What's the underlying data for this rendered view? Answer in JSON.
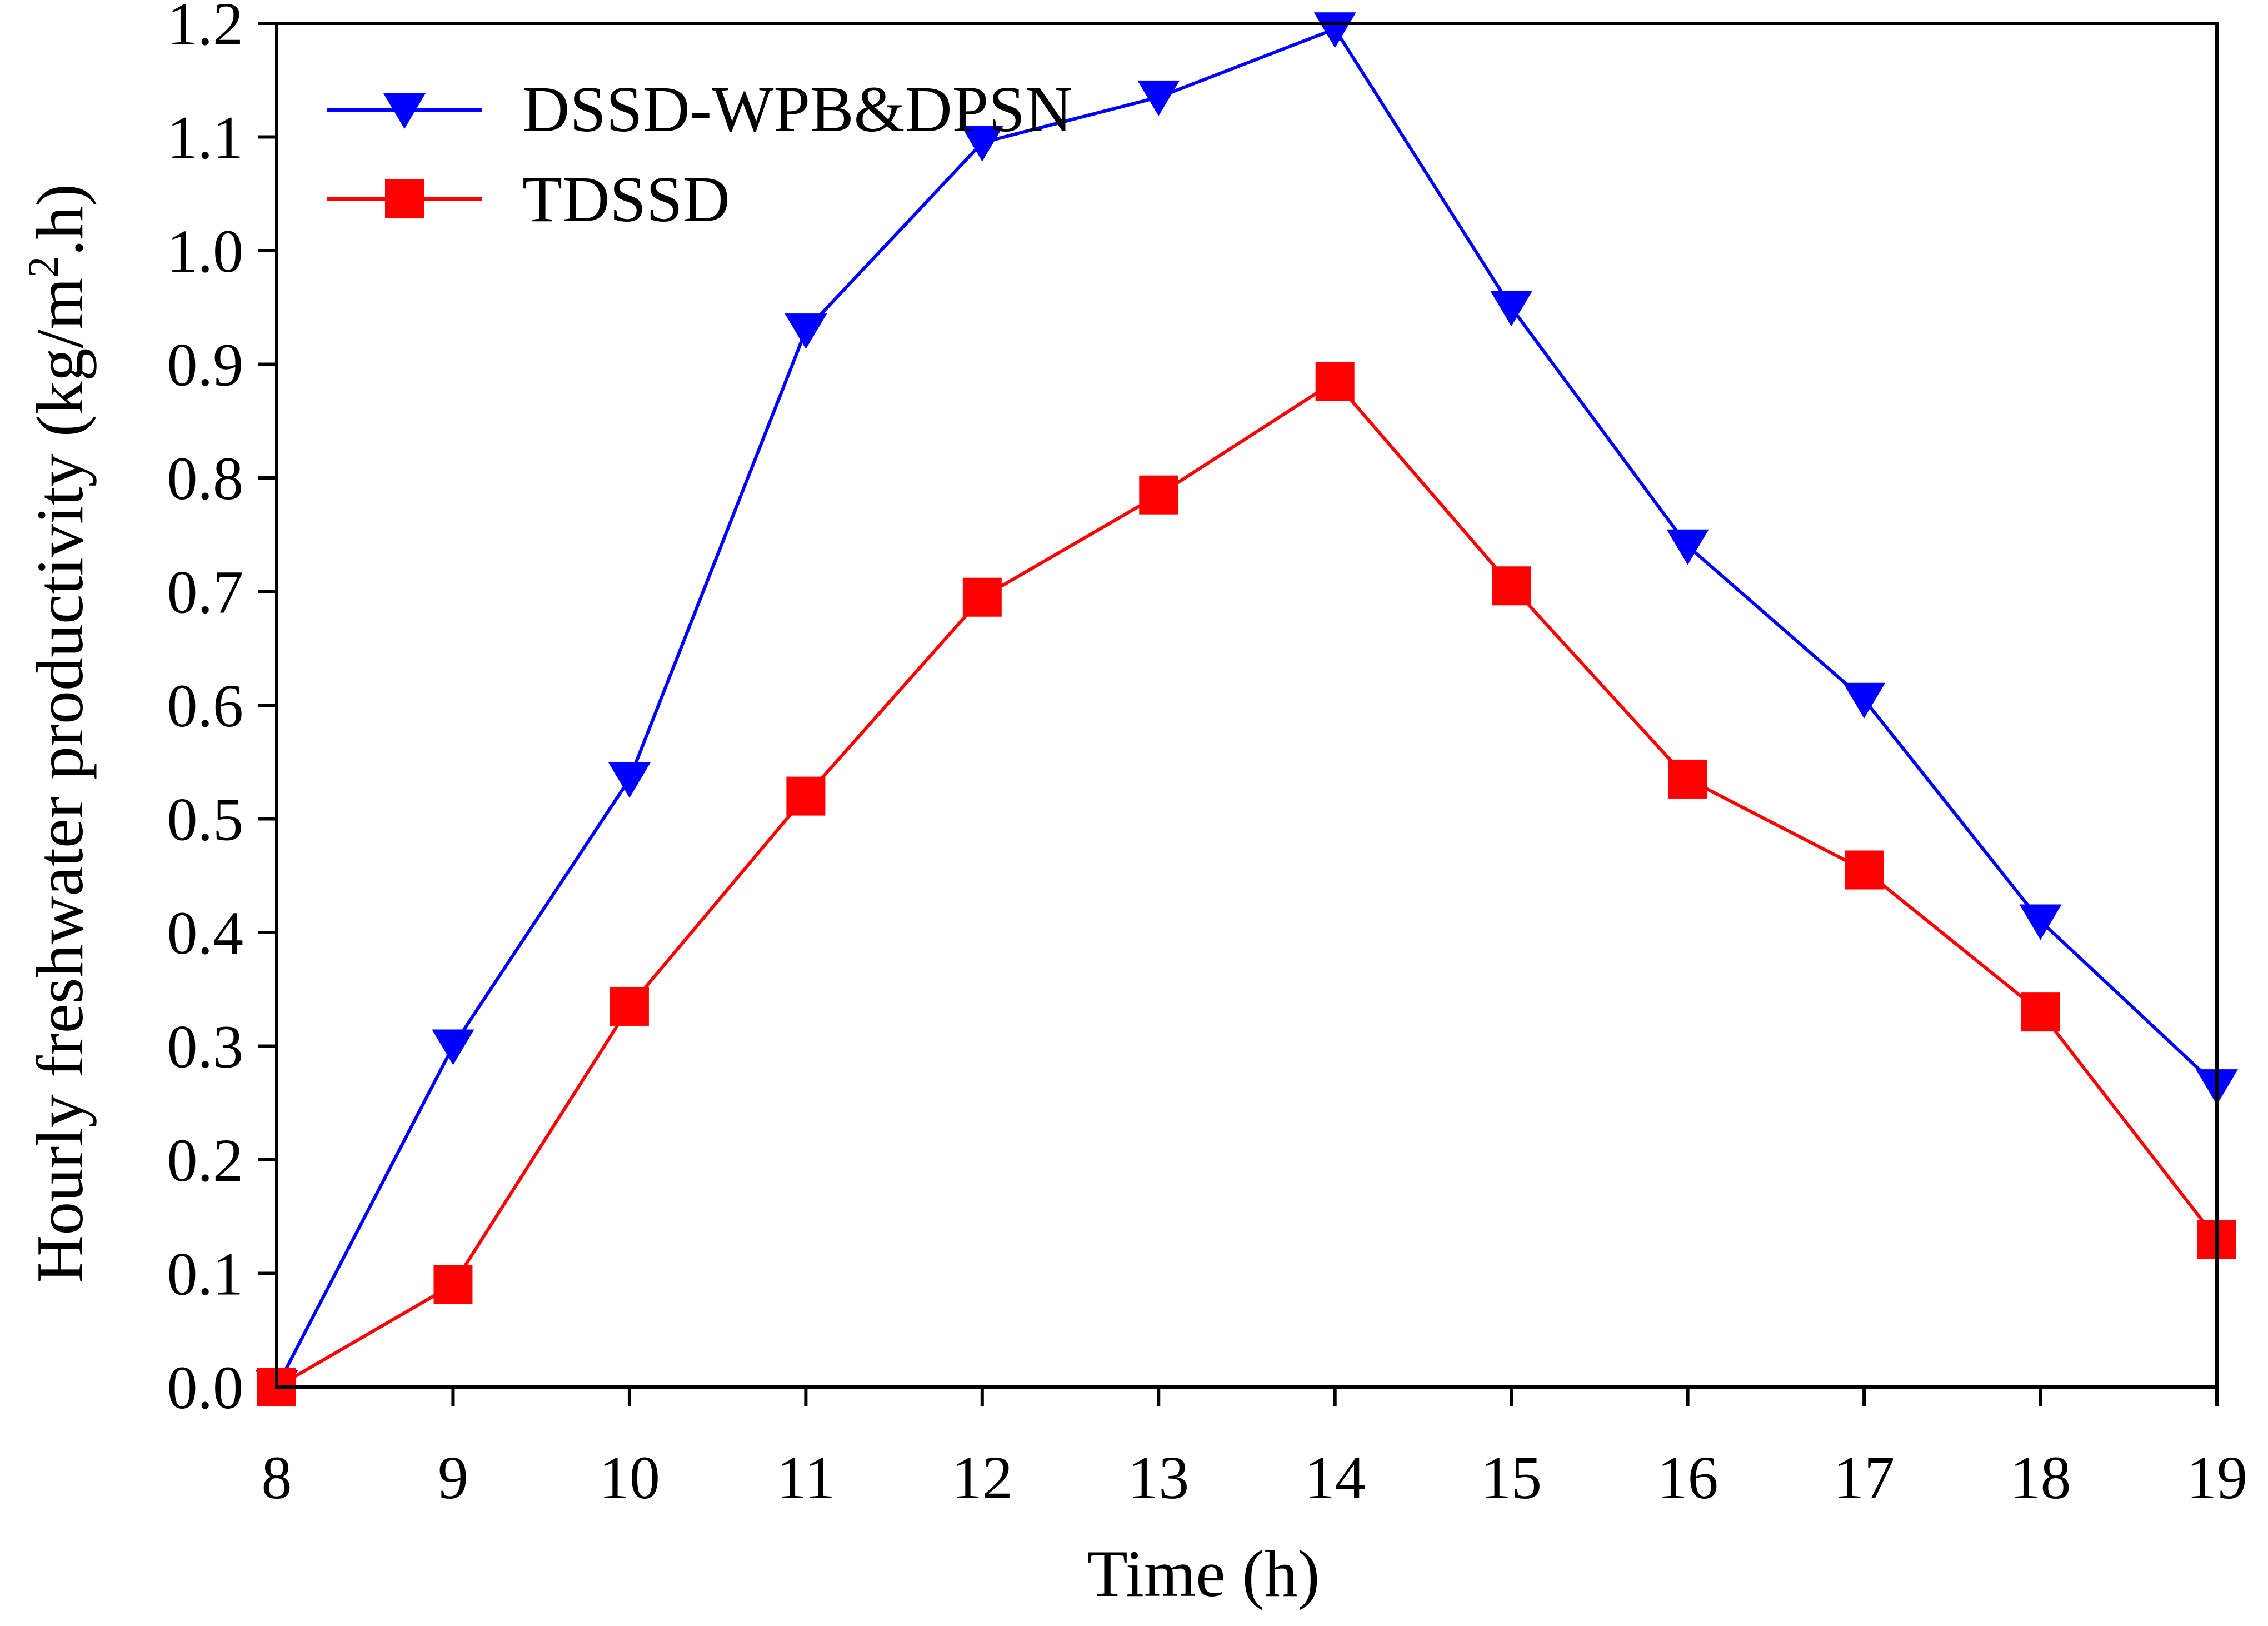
{
  "chart_data": {
    "type": "line",
    "xlabel": "Time (h)",
    "ylabel_main": "Hourly freshwater productivity (kg/m",
    "ylabel_sup": "2",
    "ylabel_tail": ".h)",
    "x": [
      8,
      9,
      10,
      11,
      12,
      13,
      14,
      15,
      16,
      17,
      18,
      19
    ],
    "xlim": [
      8,
      19
    ],
    "ylim": [
      0.0,
      1.2
    ],
    "x_tick_labels": [
      "8",
      "9",
      "10",
      "11",
      "12",
      "13",
      "14",
      "15",
      "16",
      "17",
      "18",
      "19"
    ],
    "y_ticks": [
      0.0,
      0.1,
      0.2,
      0.3,
      0.4,
      0.5,
      0.6,
      0.7,
      0.8,
      0.9,
      1.0,
      1.1,
      1.2
    ],
    "y_tick_labels": [
      "0.0",
      "0.1",
      "0.2",
      "0.3",
      "0.4",
      "0.5",
      "0.6",
      "0.7",
      "0.8",
      "0.9",
      "1.0",
      "1.1",
      "1.2"
    ],
    "grid": false,
    "legend_position": "top-left",
    "series": [
      {
        "name": "DSSD-WPB&DPSN",
        "color": "#0000ff",
        "marker": "triangle-down",
        "values": [
          0.0,
          0.3,
          0.535,
          0.93,
          1.095,
          1.135,
          1.195,
          0.95,
          0.74,
          0.605,
          0.41,
          0.265
        ]
      },
      {
        "name": "TDSSD",
        "color": "#ff0000",
        "marker": "square",
        "values": [
          0.0,
          0.09,
          0.335,
          0.52,
          0.695,
          0.785,
          0.885,
          0.705,
          0.535,
          0.455,
          0.33,
          0.13
        ]
      }
    ]
  }
}
